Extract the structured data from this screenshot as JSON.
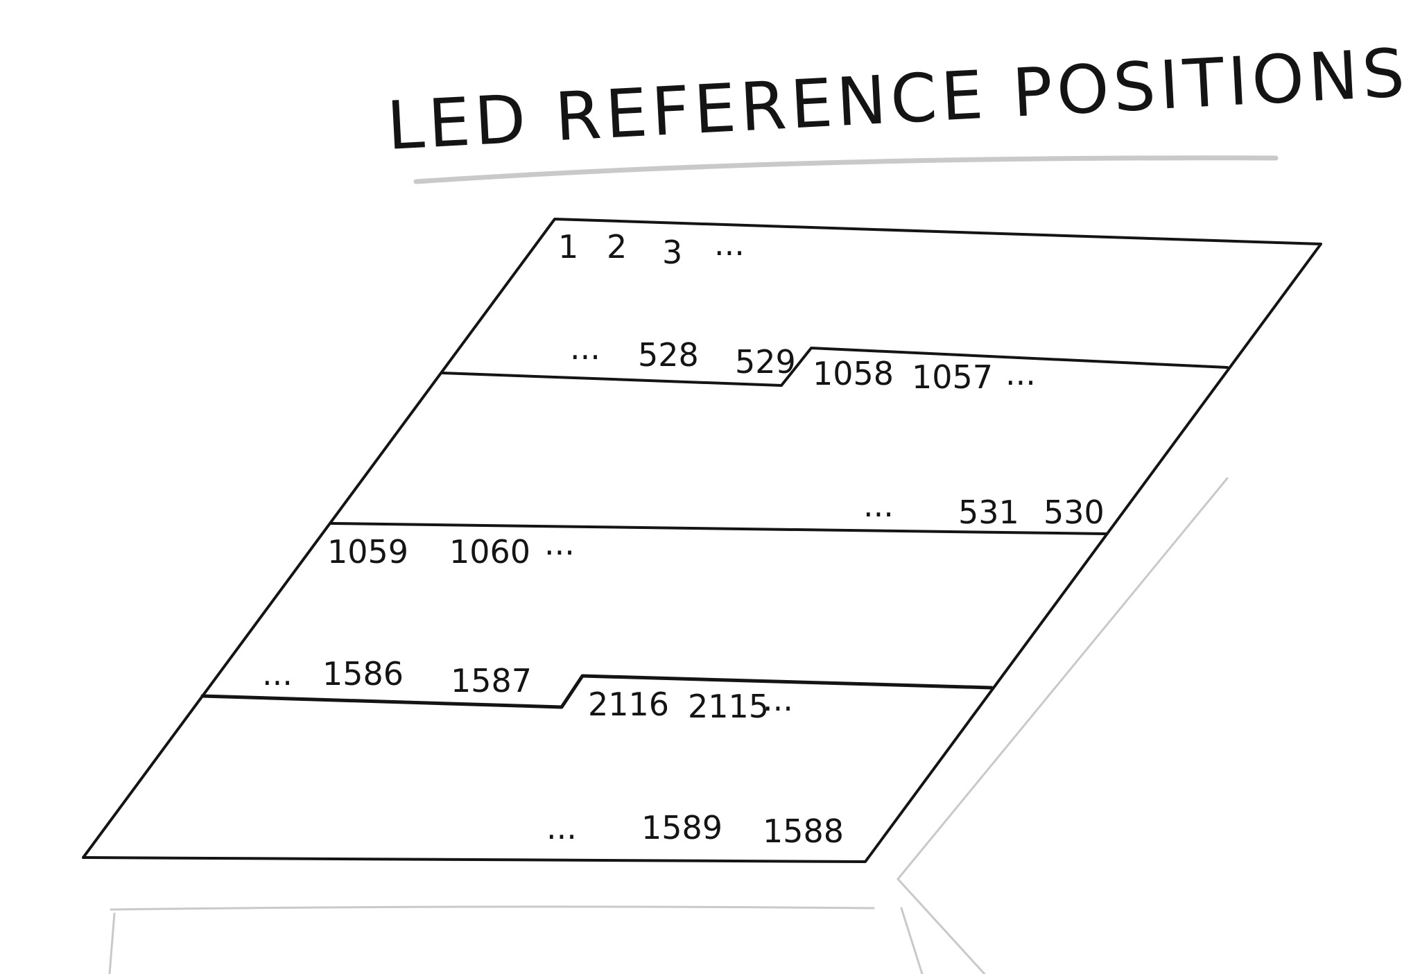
{
  "title": "LED REFERENCE POSITIONS",
  "colors": {
    "ink": "#141414",
    "pencil": "#c9c9c9",
    "paper": "#ffffff"
  },
  "strips": [
    {
      "start": [
        "1",
        "2",
        "3",
        "..."
      ],
      "end": [
        "...",
        "528",
        "529"
      ]
    },
    {
      "start": [
        "1058",
        "1057",
        "..."
      ],
      "end": [
        "...",
        "531",
        "530"
      ]
    },
    {
      "start": [
        "1059",
        "1060",
        "..."
      ],
      "end": [
        "...",
        "1586",
        "1587"
      ]
    },
    {
      "start": [
        "2116",
        "2115",
        "..."
      ],
      "end": [
        "...",
        "1589",
        "1588"
      ]
    }
  ]
}
